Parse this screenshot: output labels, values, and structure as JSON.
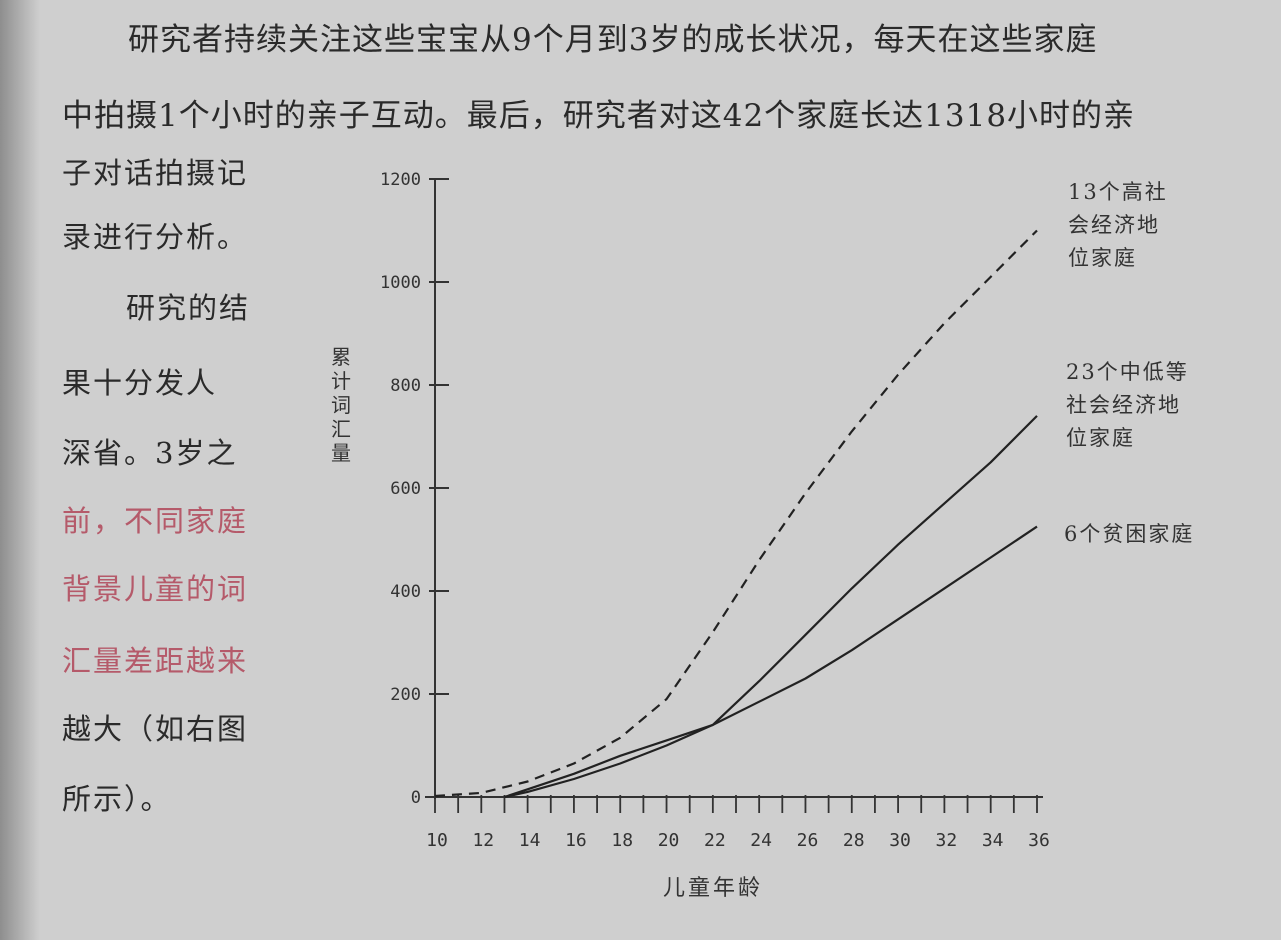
{
  "paragraph": {
    "line1": "研究者持续关注这些宝宝从9个月到3岁的成长状况，每天在这些家庭",
    "line2": "中拍摄1个小时的亲子互动。最后，研究者对这42个家庭长达1318小时的亲",
    "col_lines": [
      {
        "text": "子对话拍摄记",
        "style": "normal"
      },
      {
        "text": "录进行分析。",
        "style": "normal"
      },
      {
        "text": "研究的结",
        "style": "indent"
      },
      {
        "text": "果十分发人",
        "style": "normal"
      },
      {
        "text": "深省。3岁之",
        "style": "normal"
      },
      {
        "text": "前，不同家庭",
        "style": "red"
      },
      {
        "text": "背景儿童的词",
        "style": "red"
      },
      {
        "text": "汇量差距越来",
        "style": "red"
      },
      {
        "text": "越大（如右图",
        "style": "normal"
      },
      {
        "text": "所示）。",
        "style": "normal"
      }
    ]
  },
  "chart_data": {
    "type": "line",
    "xlabel": "儿童年龄",
    "ylabel": "累计词汇量",
    "xlim": [
      10,
      36
    ],
    "ylim": [
      0,
      1200
    ],
    "x_ticks": [
      10,
      12,
      14,
      16,
      18,
      20,
      22,
      24,
      26,
      28,
      30,
      32,
      34,
      36
    ],
    "y_ticks": [
      0,
      200,
      400,
      600,
      800,
      1000,
      1200
    ],
    "series": [
      {
        "name": "13个高社会经济地位家庭",
        "line_style": "dashed",
        "x": [
          10,
          12,
          14,
          16,
          18,
          20,
          22,
          24,
          26,
          28,
          30,
          32,
          34,
          36
        ],
        "y": [
          2,
          8,
          30,
          65,
          115,
          190,
          320,
          460,
          590,
          710,
          820,
          920,
          1010,
          1100
        ]
      },
      {
        "name": "23个中低等社会经济地位家庭",
        "line_style": "solid",
        "x": [
          13,
          14,
          16,
          18,
          20,
          22,
          24,
          26,
          28,
          30,
          32,
          34,
          36
        ],
        "y": [
          0,
          10,
          35,
          65,
          100,
          140,
          225,
          315,
          405,
          490,
          570,
          650,
          740
        ]
      },
      {
        "name": "6个贫困家庭",
        "line_style": "solid",
        "x": [
          13,
          14,
          16,
          18,
          20,
          22,
          24,
          26,
          28,
          30,
          32,
          34,
          36
        ],
        "y": [
          0,
          15,
          45,
          80,
          110,
          140,
          185,
          230,
          285,
          345,
          405,
          465,
          525
        ]
      }
    ]
  },
  "labels": {
    "high": [
      "13个高社",
      "会经济地",
      "位家庭"
    ],
    "mid": [
      "23个中低等",
      "社会经济地",
      "位家庭"
    ],
    "poor": [
      "6个贫困家庭"
    ]
  }
}
